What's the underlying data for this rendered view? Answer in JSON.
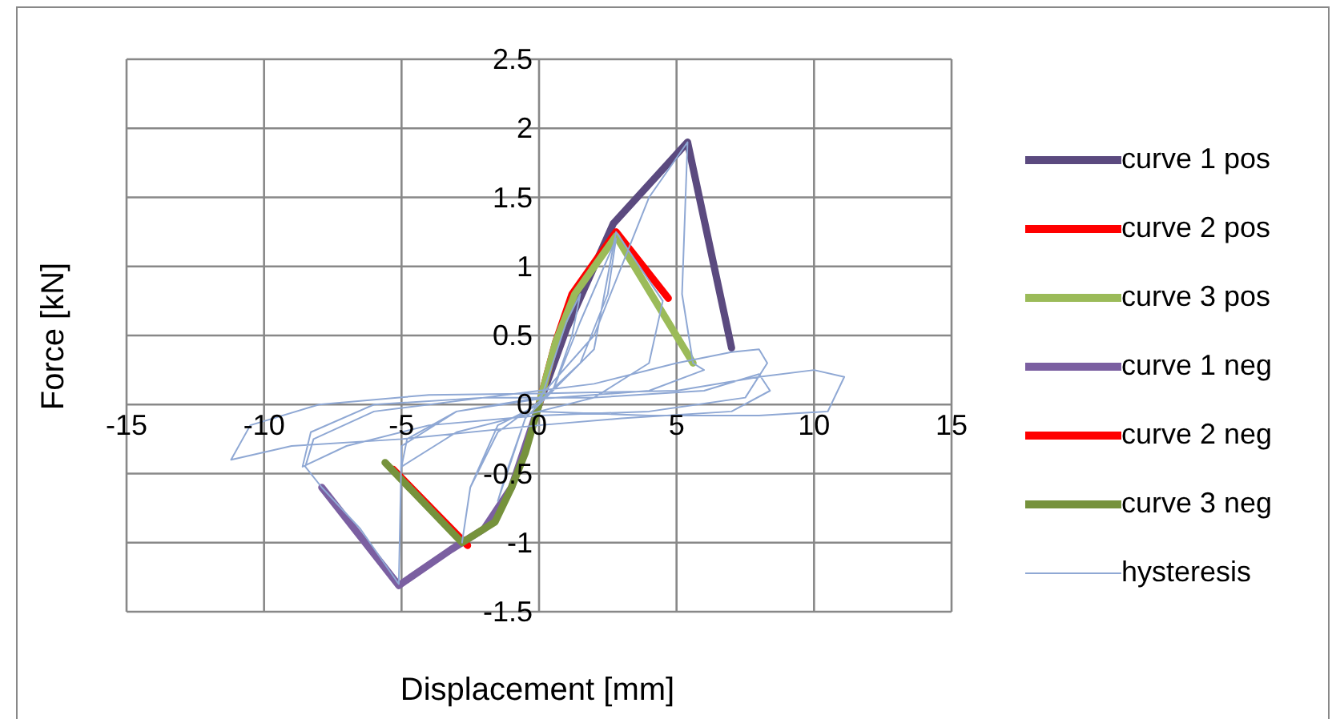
{
  "chart_data": {
    "type": "line",
    "xlabel": "Displacement [mm]",
    "ylabel": "Force [kN]",
    "xlim": [
      -15,
      15
    ],
    "xticks": [
      -15,
      -10,
      -5,
      0,
      5,
      10,
      15
    ],
    "ylim": [
      -1.5,
      2.5
    ],
    "yticks": [
      -1.5,
      -1,
      -0.5,
      0,
      0.5,
      1,
      1.5,
      2,
      2.5
    ],
    "grid": true,
    "legend": "right",
    "marker": "none",
    "line_style": "solid",
    "series": [
      {
        "name": "curve 1 pos",
        "color": "#5b4a7f",
        "x": [
          0,
          1,
          2.7,
          5.4,
          7.0
        ],
        "values": [
          0,
          0.55,
          1.31,
          1.9,
          0.41
        ]
      },
      {
        "name": "curve 2 pos",
        "color": "#ff0000",
        "x": [
          0,
          0.6,
          1.2,
          2.8,
          4.7
        ],
        "values": [
          0,
          0.45,
          0.8,
          1.25,
          0.77
        ]
      },
      {
        "name": "curve 3 pos",
        "color": "#9bbb59",
        "x": [
          0,
          0.6,
          1.3,
          2.8,
          5.6
        ],
        "values": [
          0,
          0.45,
          0.8,
          1.22,
          0.3
        ]
      },
      {
        "name": "curve 1 neg",
        "color": "#7b5fa1",
        "x": [
          0,
          -1,
          -2,
          -3.2,
          -5.1,
          -7.9
        ],
        "values": [
          0,
          -0.6,
          -0.9,
          -1.05,
          -1.31,
          -0.6
        ]
      },
      {
        "name": "curve 2 neg",
        "color": "#ff0000",
        "x": [
          -2.6,
          -5.3
        ],
        "values": [
          -1.02,
          -0.47
        ]
      },
      {
        "name": "curve 3 neg",
        "color": "#76923c",
        "x": [
          0,
          -0.5,
          -1,
          -1.6,
          -2.8,
          -5.6
        ],
        "values": [
          0,
          -0.35,
          -0.6,
          -0.85,
          -1.0,
          -0.42
        ]
      },
      {
        "name": "hysteresis",
        "color": "#8fa8d4",
        "x": [
          0,
          0.5,
          1,
          1.5,
          1.2,
          0.5,
          -0.5,
          -1,
          -1.5,
          -1.2,
          -0.5,
          0.5,
          1.5,
          2.8,
          2.5,
          1.5,
          0,
          -1.5,
          -2.5,
          -2.8,
          -2.5,
          -1.5,
          0,
          2,
          2.8,
          4.5,
          4,
          2,
          0,
          -3,
          -5,
          -4.8,
          -3,
          0,
          2,
          4,
          5.4,
          5.2,
          5.6,
          6,
          4,
          0,
          -3,
          -5,
          -5.1,
          -6.5,
          -7.9,
          -8.5,
          -8.2,
          -6,
          -2,
          0,
          2,
          5,
          7,
          8,
          8.3,
          7.5,
          4,
          0,
          -4,
          -7,
          -8.6,
          -8.3,
          -6,
          -2,
          2,
          6,
          8,
          8.4,
          7,
          3,
          0,
          -5,
          -9,
          -11.2,
          -10.5,
          -8,
          -4,
          0,
          5,
          8,
          10,
          11.1,
          10.5,
          8,
          4,
          0
        ],
        "values": [
          0,
          0.3,
          0.6,
          0.8,
          0.5,
          0.1,
          -0.1,
          -0.4,
          -0.7,
          -0.5,
          -0.1,
          0.1,
          0.6,
          1.2,
          0.8,
          0.3,
          0.02,
          -0.2,
          -0.6,
          -1.0,
          -0.6,
          -0.15,
          0,
          0.4,
          1.25,
          0.75,
          0.3,
          0.05,
          -0.05,
          -0.2,
          -0.45,
          -0.25,
          -0.05,
          0.05,
          0.5,
          1.5,
          1.9,
          0.8,
          0.3,
          0.25,
          0.1,
          0.04,
          -0.05,
          -0.3,
          -1.3,
          -0.9,
          -0.6,
          -0.45,
          -0.25,
          -0.05,
          0.05,
          0.1,
          0.15,
          0.3,
          0.38,
          0.4,
          0.3,
          0.05,
          -0.05,
          -0.08,
          -0.15,
          -0.3,
          -0.45,
          -0.2,
          0,
          0.05,
          0.05,
          0.1,
          0.22,
          0.1,
          -0.05,
          -0.1,
          -0.15,
          -0.25,
          -0.3,
          -0.4,
          -0.15,
          0,
          0.07,
          0.08,
          0.1,
          0.2,
          0.25,
          0.2,
          -0.05,
          -0.08,
          -0.08,
          -0.05
        ]
      }
    ]
  }
}
